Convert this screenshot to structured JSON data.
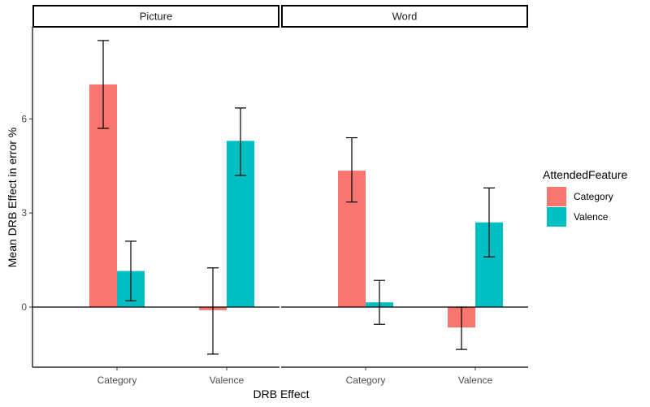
{
  "chart_data": {
    "type": "bar",
    "facets": [
      "Picture",
      "Word"
    ],
    "categories": [
      "Category",
      "Valence"
    ],
    "xlabel": "DRB Effect",
    "ylabel": "Mean DRB Effect in error %",
    "yticks": [
      0,
      3,
      6
    ],
    "ylim": [
      -1.9,
      8.6
    ],
    "legend": {
      "title": "AttendedFeature",
      "position": "right",
      "entries": [
        "Category",
        "Valence"
      ]
    },
    "series": [
      {
        "name": "Category",
        "color": "#F8766D",
        "panels": {
          "Picture": {
            "values": [
              7.1,
              -0.1
            ],
            "error_low": [
              5.7,
              -1.5
            ],
            "error_high": [
              8.5,
              1.25
            ]
          },
          "Word": {
            "values": [
              4.35,
              -0.65
            ],
            "error_low": [
              3.35,
              -1.35
            ],
            "error_high": [
              5.4,
              0.0
            ]
          }
        }
      },
      {
        "name": "Valence",
        "color": "#00BFC4",
        "panels": {
          "Picture": {
            "values": [
              1.15,
              5.3
            ],
            "error_low": [
              0.2,
              4.2
            ],
            "error_high": [
              2.1,
              6.35
            ]
          },
          "Word": {
            "values": [
              0.15,
              2.7
            ],
            "error_low": [
              -0.55,
              1.6
            ],
            "error_high": [
              0.85,
              3.8
            ]
          }
        }
      }
    ]
  }
}
